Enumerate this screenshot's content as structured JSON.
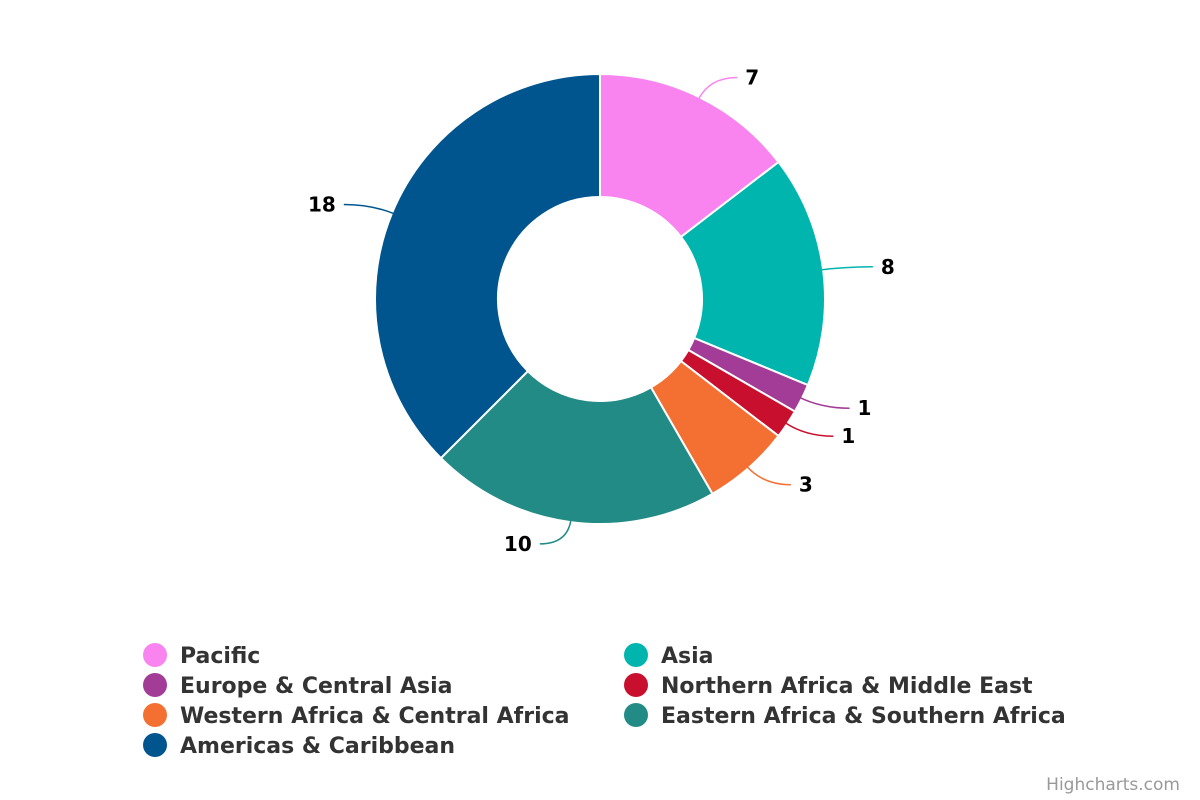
{
  "chart_data": {
    "type": "pie",
    "variant": "donut",
    "categories": [
      "Pacific",
      "Asia",
      "Europe & Central Asia",
      "Northern Africa & Middle East",
      "Western Africa & Central Africa",
      "Eastern Africa & Southern Africa",
      "Americas & Caribbean"
    ],
    "values": [
      7,
      8,
      1,
      1,
      3,
      10,
      18
    ],
    "colors": [
      "#f984ef",
      "#00b5ad",
      "#a23c96",
      "#c8102e",
      "#f37032",
      "#238b85",
      "#00558f"
    ],
    "legend_position": "bottom",
    "legend_columns": 2
  },
  "credits": "Highcharts.com"
}
